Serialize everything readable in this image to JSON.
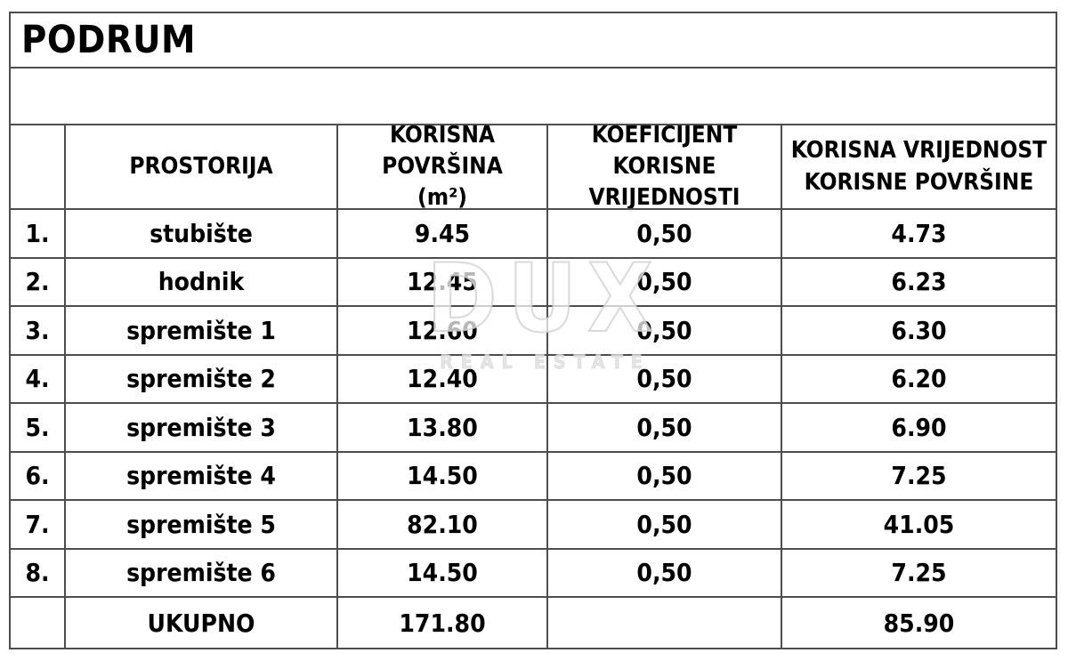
{
  "page": {
    "title": "PODRUM"
  },
  "colors": {
    "grid_line": "#4d4d4d",
    "text": "#000000",
    "background": "#ffffff",
    "watermark": "#ededed"
  },
  "table": {
    "columns": [
      {
        "lines": []
      },
      {
        "lines": [
          "PROSTORIJA"
        ]
      },
      {
        "lines": [
          "KORISNA POVRŠINA",
          "(m²)"
        ]
      },
      {
        "lines": [
          "KOEFICIJENT KORISNE",
          "VRIJEDNOSTI"
        ]
      },
      {
        "lines": [
          "KORISNA VRIJEDNOST",
          "KORISNE POVRŠINE"
        ]
      }
    ],
    "rows": [
      {
        "num": "1.",
        "prostorija": "stubište",
        "povrsina": "9.45",
        "koeficijent": "0,50",
        "vrijednost": "4.73"
      },
      {
        "num": "2.",
        "prostorija": "hodnik",
        "povrsina": "12.45",
        "koeficijent": "0,50",
        "vrijednost": "6.23"
      },
      {
        "num": "3.",
        "prostorija": "spremište 1",
        "povrsina": "12.60",
        "koeficijent": "0,50",
        "vrijednost": "6.30"
      },
      {
        "num": "4.",
        "prostorija": "spremište 2",
        "povrsina": "12.40",
        "koeficijent": "0,50",
        "vrijednost": "6.20"
      },
      {
        "num": "5.",
        "prostorija": "spremište 3",
        "povrsina": "13.80",
        "koeficijent": "0,50",
        "vrijednost": "6.90"
      },
      {
        "num": "6.",
        "prostorija": "spremište 4",
        "povrsina": "14.50",
        "koeficijent": "0,50",
        "vrijednost": "7.25"
      },
      {
        "num": "7.",
        "prostorija": "spremište 5",
        "povrsina": "82.10",
        "koeficijent": "0,50",
        "vrijednost": "41.05"
      },
      {
        "num": "8.",
        "prostorija": "spremište 6",
        "povrsina": "14.50",
        "koeficijent": "0,50",
        "vrijednost": "7.25"
      }
    ],
    "total": {
      "num": "",
      "prostorija": "UKUPNO",
      "povrsina": "171.80",
      "koeficijent": "",
      "vrijednost": "85.90"
    }
  },
  "watermark": {
    "line1": "DUX",
    "line2": "REAL ESTATE"
  }
}
